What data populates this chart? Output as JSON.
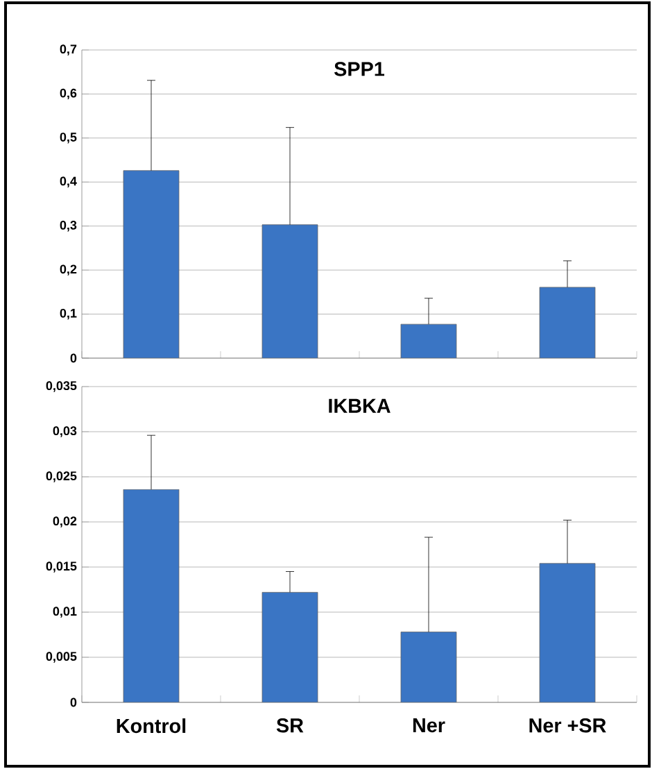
{
  "chart_data": [
    {
      "type": "bar",
      "title": "SPP1",
      "categories": [
        null,
        null,
        null,
        null
      ],
      "values": [
        0.426,
        0.303,
        0.077,
        0.161
      ],
      "errors": [
        [
          0.426,
          0.631
        ],
        [
          0.303,
          0.524
        ],
        [
          0.077,
          0.136
        ],
        [
          0.161,
          0.221
        ]
      ],
      "color": "#3a75c4",
      "ylim": [
        0,
        0.7
      ],
      "yticks": [
        0,
        {
          "value": 0.1,
          "label": "0,1"
        },
        {
          "value": 0.2,
          "label": "0,2"
        },
        {
          "value": 0.3,
          "label": "0,3"
        },
        {
          "value": 0.4,
          "label": "0,4"
        },
        {
          "value": 0.5,
          "label": "0,5"
        },
        {
          "value": 0.6,
          "label": "0,6"
        },
        {
          "value": 0.7,
          "label": "0,7"
        }
      ],
      "grid": "y"
    },
    {
      "type": "bar",
      "title": "IKBKA",
      "categories": [
        "Kontrol",
        "SR",
        "Ner",
        "Ner +SR"
      ],
      "values": [
        0.0236,
        0.0122,
        0.0078,
        0.0154
      ],
      "errors": [
        [
          0.0236,
          0.0296
        ],
        [
          0.0122,
          0.0145
        ],
        [
          0.0078,
          0.0183
        ],
        [
          0.0154,
          0.0202
        ]
      ],
      "color": "#3a75c4",
      "ylim": [
        0,
        0.035
      ],
      "yticks": [
        0,
        {
          "value": 0.005,
          "label": "0,005"
        },
        {
          "value": 0.01,
          "label": "0,01"
        },
        {
          "value": 0.015,
          "label": "0,015"
        },
        {
          "value": 0.02,
          "label": "0,02"
        },
        {
          "value": 0.025,
          "label": "0,025"
        },
        {
          "value": 0.03,
          "label": "0,03"
        },
        {
          "value": 0.035,
          "label": "0,035"
        }
      ],
      "grid": "y"
    }
  ]
}
